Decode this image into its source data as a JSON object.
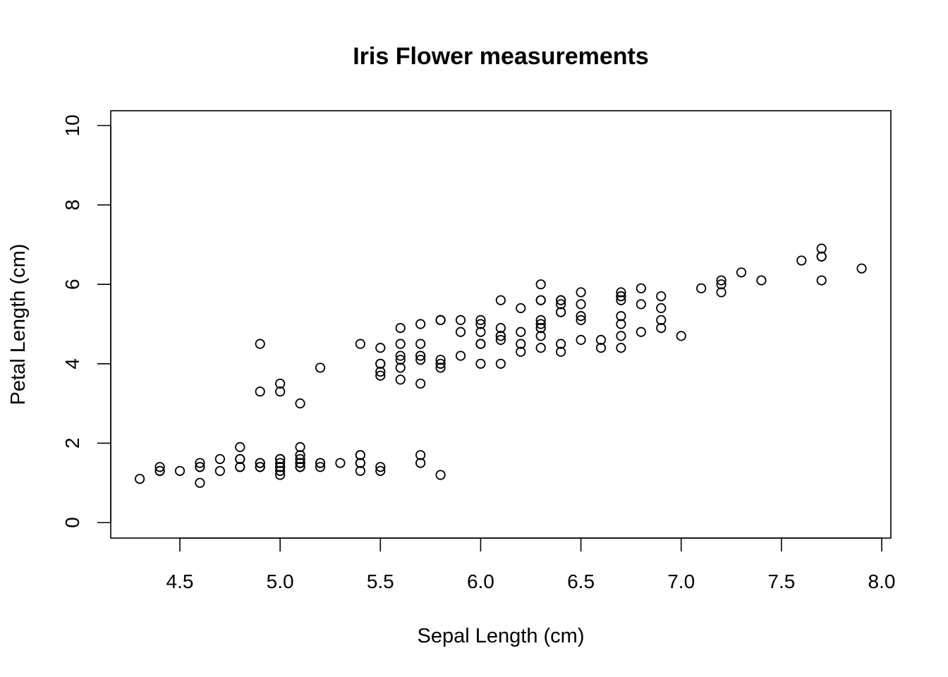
{
  "chart_data": {
    "type": "scatter",
    "title": "Iris Flower measurements",
    "xlabel": "Sepal Length (cm)",
    "ylabel": "Petal Length (cm)",
    "xlim": [
      4.3,
      7.9
    ],
    "ylim": [
      0,
      10
    ],
    "x_ticks": [
      "4.5",
      "5.0",
      "5.5",
      "6.0",
      "6.5",
      "7.0",
      "7.5",
      "8.0"
    ],
    "y_ticks": [
      "0",
      "2",
      "4",
      "6",
      "8",
      "10"
    ],
    "grid": false,
    "legend": "none",
    "marker": "open-circle",
    "point_color": "#000000",
    "points": [
      [
        5.1,
        1.4
      ],
      [
        4.9,
        1.4
      ],
      [
        4.7,
        1.3
      ],
      [
        4.6,
        1.5
      ],
      [
        5.0,
        1.4
      ],
      [
        5.4,
        1.7
      ],
      [
        4.6,
        1.4
      ],
      [
        5.0,
        1.5
      ],
      [
        4.4,
        1.4
      ],
      [
        4.9,
        1.5
      ],
      [
        5.4,
        1.5
      ],
      [
        4.8,
        1.6
      ],
      [
        4.8,
        1.4
      ],
      [
        4.3,
        1.1
      ],
      [
        5.8,
        1.2
      ],
      [
        5.7,
        1.5
      ],
      [
        5.4,
        1.3
      ],
      [
        5.1,
        1.4
      ],
      [
        5.7,
        1.7
      ],
      [
        5.1,
        1.5
      ],
      [
        5.4,
        1.7
      ],
      [
        5.1,
        1.5
      ],
      [
        4.6,
        1.0
      ],
      [
        5.1,
        1.7
      ],
      [
        4.8,
        1.9
      ],
      [
        5.0,
        1.6
      ],
      [
        5.0,
        1.6
      ],
      [
        5.2,
        1.5
      ],
      [
        5.2,
        1.4
      ],
      [
        4.7,
        1.6
      ],
      [
        4.8,
        1.6
      ],
      [
        5.4,
        1.5
      ],
      [
        5.2,
        1.5
      ],
      [
        5.5,
        1.4
      ],
      [
        4.9,
        1.5
      ],
      [
        5.0,
        1.2
      ],
      [
        5.5,
        1.3
      ],
      [
        4.9,
        1.4
      ],
      [
        4.4,
        1.3
      ],
      [
        5.1,
        1.5
      ],
      [
        5.0,
        1.3
      ],
      [
        4.5,
        1.3
      ],
      [
        4.4,
        1.3
      ],
      [
        5.0,
        1.6
      ],
      [
        5.1,
        1.9
      ],
      [
        4.8,
        1.4
      ],
      [
        5.1,
        1.6
      ],
      [
        4.6,
        1.4
      ],
      [
        5.3,
        1.5
      ],
      [
        5.0,
        1.4
      ],
      [
        7.0,
        4.7
      ],
      [
        6.4,
        4.5
      ],
      [
        6.9,
        4.9
      ],
      [
        5.5,
        4.0
      ],
      [
        6.5,
        4.6
      ],
      [
        5.7,
        4.5
      ],
      [
        6.3,
        4.7
      ],
      [
        4.9,
        3.3
      ],
      [
        6.6,
        4.6
      ],
      [
        5.2,
        3.9
      ],
      [
        5.0,
        3.5
      ],
      [
        5.9,
        4.2
      ],
      [
        6.0,
        4.0
      ],
      [
        6.1,
        4.7
      ],
      [
        5.6,
        3.6
      ],
      [
        6.7,
        4.4
      ],
      [
        5.6,
        4.5
      ],
      [
        5.8,
        4.1
      ],
      [
        6.2,
        4.5
      ],
      [
        5.6,
        3.9
      ],
      [
        5.9,
        4.8
      ],
      [
        6.1,
        4.0
      ],
      [
        6.3,
        4.9
      ],
      [
        6.1,
        4.7
      ],
      [
        6.4,
        4.3
      ],
      [
        6.6,
        4.4
      ],
      [
        6.8,
        4.8
      ],
      [
        6.7,
        5.0
      ],
      [
        6.0,
        4.5
      ],
      [
        5.7,
        3.5
      ],
      [
        5.5,
        3.8
      ],
      [
        5.5,
        3.7
      ],
      [
        5.8,
        3.9
      ],
      [
        6.0,
        5.1
      ],
      [
        5.4,
        4.5
      ],
      [
        6.0,
        4.5
      ],
      [
        6.7,
        4.7
      ],
      [
        6.3,
        4.4
      ],
      [
        5.6,
        4.1
      ],
      [
        5.5,
        4.0
      ],
      [
        5.5,
        4.4
      ],
      [
        6.1,
        4.6
      ],
      [
        5.8,
        4.0
      ],
      [
        5.0,
        3.3
      ],
      [
        5.6,
        4.2
      ],
      [
        5.7,
        4.2
      ],
      [
        5.7,
        4.2
      ],
      [
        6.2,
        4.3
      ],
      [
        5.1,
        3.0
      ],
      [
        5.7,
        4.1
      ],
      [
        6.3,
        6.0
      ],
      [
        5.8,
        5.1
      ],
      [
        7.1,
        5.9
      ],
      [
        6.3,
        5.6
      ],
      [
        6.5,
        5.8
      ],
      [
        7.6,
        6.6
      ],
      [
        4.9,
        4.5
      ],
      [
        7.3,
        6.3
      ],
      [
        6.7,
        5.8
      ],
      [
        7.2,
        6.1
      ],
      [
        6.5,
        5.1
      ],
      [
        6.4,
        5.3
      ],
      [
        6.8,
        5.5
      ],
      [
        5.7,
        5.0
      ],
      [
        5.8,
        5.1
      ],
      [
        6.4,
        5.3
      ],
      [
        6.5,
        5.5
      ],
      [
        7.7,
        6.7
      ],
      [
        7.7,
        6.9
      ],
      [
        6.0,
        5.0
      ],
      [
        6.9,
        5.7
      ],
      [
        5.6,
        4.9
      ],
      [
        7.7,
        6.7
      ],
      [
        6.3,
        4.9
      ],
      [
        6.7,
        5.7
      ],
      [
        7.2,
        6.0
      ],
      [
        6.2,
        4.8
      ],
      [
        6.1,
        4.9
      ],
      [
        6.4,
        5.6
      ],
      [
        7.2,
        5.8
      ],
      [
        7.4,
        6.1
      ],
      [
        7.9,
        6.4
      ],
      [
        6.4,
        5.6
      ],
      [
        6.3,
        5.1
      ],
      [
        6.1,
        5.6
      ],
      [
        7.7,
        6.1
      ],
      [
        6.3,
        5.6
      ],
      [
        6.4,
        5.5
      ],
      [
        6.0,
        4.8
      ],
      [
        6.9,
        5.4
      ],
      [
        6.7,
        5.6
      ],
      [
        6.9,
        5.1
      ],
      [
        5.8,
        5.1
      ],
      [
        6.8,
        5.9
      ],
      [
        6.7,
        5.7
      ],
      [
        6.7,
        5.2
      ],
      [
        6.3,
        5.0
      ],
      [
        6.5,
        5.2
      ],
      [
        6.2,
        5.4
      ],
      [
        5.9,
        5.1
      ]
    ]
  }
}
